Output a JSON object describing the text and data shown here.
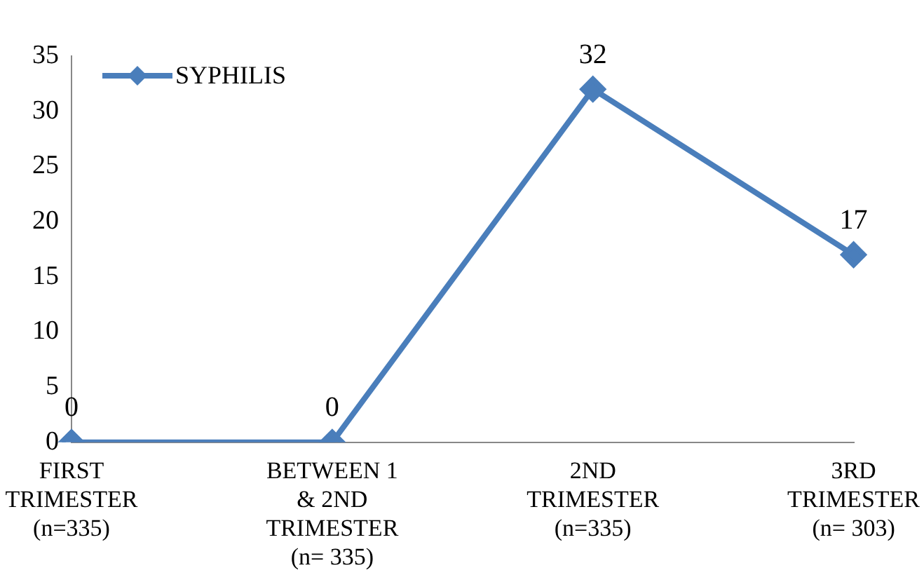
{
  "chart_data": {
    "type": "line",
    "categories": [
      "FIRST TRIMESTER (n=335)",
      "BETWEEN 1 & 2ND TRIMESTER (n= 335)",
      "2ND TRIMESTER (n=335)",
      "3RD TRIMESTER (n= 303)"
    ],
    "series": [
      {
        "name": "SYPHILIS",
        "color": "#4a7ebb",
        "values": [
          0,
          0,
          32,
          17
        ]
      }
    ],
    "ylim": [
      0,
      35
    ],
    "yticks": [
      0,
      5,
      10,
      15,
      20,
      25,
      30,
      35
    ],
    "grid": false,
    "legend": "top left",
    "marker": "diamond",
    "line_style": "solid",
    "data_labels": true
  }
}
